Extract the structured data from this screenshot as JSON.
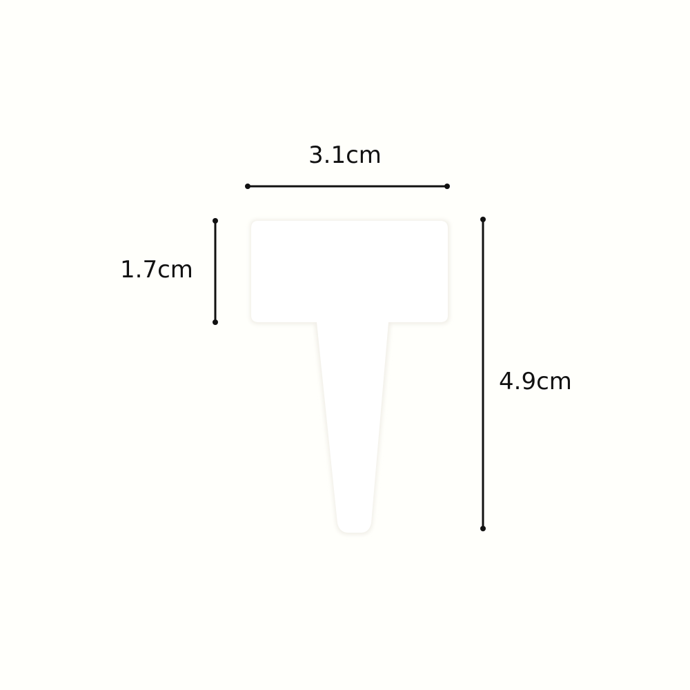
{
  "dimensions": {
    "width_label": "3.1cm",
    "head_height_label": "1.7cm",
    "total_height_label": "4.9cm"
  },
  "colors": {
    "background": "#fffffb",
    "label_body": "#ffffff",
    "label_shadow": "#f1efe8",
    "dimension_line": "#111111"
  }
}
